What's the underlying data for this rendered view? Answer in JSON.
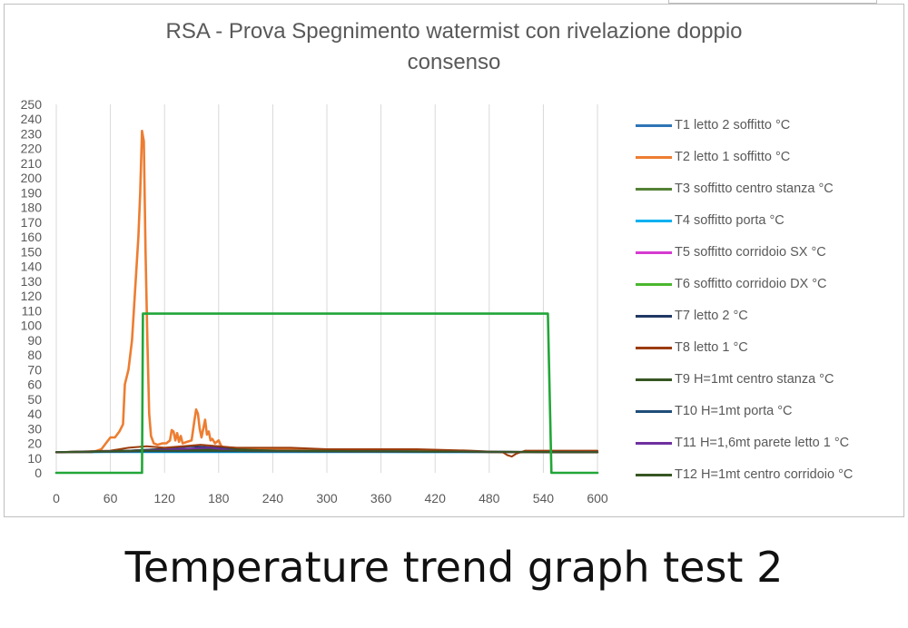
{
  "caption": "Temperature trend graph test 2",
  "chart_data": {
    "type": "line",
    "title": "RSA - Prova Spegnimento watermist con rivelazione doppio consenso",
    "title_lines": [
      "RSA - Prova Spegnimento watermist con rivelazione doppio",
      "consenso"
    ],
    "xlabel": "",
    "ylabel": "",
    "xlim": [
      0,
      600
    ],
    "ylim": [
      0,
      250
    ],
    "x_ticks": [
      "0",
      "60",
      "120",
      "180",
      "240",
      "300",
      "360",
      "420",
      "480",
      "540",
      "600"
    ],
    "y_ticks": [
      "0",
      "10",
      "20",
      "30",
      "40",
      "50",
      "60",
      "70",
      "80",
      "90",
      "100",
      "110",
      "120",
      "130",
      "140",
      "150",
      "160",
      "170",
      "180",
      "190",
      "200",
      "210",
      "220",
      "230",
      "240",
      "250"
    ],
    "grid": "vertical",
    "legend_position": "right",
    "series": [
      {
        "name": "T1 letto 2 soffitto °C",
        "color": "#2e75b6",
        "x": [
          0,
          40,
          80,
          100,
          130,
          180,
          250,
          400,
          600
        ],
        "y": [
          14,
          14,
          14.5,
          15,
          15,
          15,
          14.5,
          14,
          14
        ]
      },
      {
        "name": "T2 letto 1 soffitto °C",
        "color": "#ed7d31",
        "x": [
          0,
          40,
          50,
          55,
          60,
          65,
          70,
          74,
          76,
          78,
          80,
          84,
          88,
          91,
          93,
          95,
          97,
          99,
          101,
          103,
          105,
          108,
          112,
          118,
          122,
          126,
          128,
          130,
          132,
          134,
          136,
          138,
          140,
          145,
          150,
          153,
          155,
          157,
          159,
          161,
          163,
          165,
          167,
          169,
          171,
          173,
          176,
          180,
          183,
          186,
          190,
          200,
          220,
          260,
          300,
          400,
          480,
          540,
          600
        ],
        "y": [
          14,
          14,
          16,
          20,
          24,
          24,
          28,
          33,
          60,
          65,
          70,
          90,
          130,
          160,
          190,
          232,
          225,
          150,
          90,
          40,
          25,
          20,
          19,
          20,
          20,
          22,
          29,
          28,
          22,
          27,
          21,
          25,
          20,
          21,
          22,
          35,
          43,
          40,
          30,
          24,
          30,
          36,
          26,
          28,
          22,
          23,
          20,
          22,
          18,
          17,
          17,
          16,
          16,
          16,
          15,
          15,
          14,
          14,
          14
        ]
      },
      {
        "name": "T3 soffitto centro stanza °C",
        "color": "#548235",
        "x": [
          0,
          80,
          120,
          180,
          250,
          600
        ],
        "y": [
          14,
          15,
          16,
          16,
          15,
          14
        ]
      },
      {
        "name": "T4 soffitto porta °C",
        "color": "#00b0f0",
        "x": [
          0,
          100,
          200,
          600
        ],
        "y": [
          14,
          14,
          14,
          14
        ]
      },
      {
        "name": "T5 soffitto corridoio SX °C",
        "color": "#d63ad0",
        "x": [
          0,
          100,
          200,
          600
        ],
        "y": [
          14,
          14.5,
          14.5,
          14
        ]
      },
      {
        "name": "T6 soffitto corridoio DX °C",
        "color": "#4cb72f",
        "x": [
          0,
          100,
          200,
          600
        ],
        "y": [
          14,
          14.5,
          14.5,
          14
        ]
      },
      {
        "name": "T7 letto 2 °C",
        "color": "#203864",
        "x": [
          0,
          80,
          110,
          150,
          180,
          220,
          600
        ],
        "y": [
          14,
          15,
          16,
          18,
          17,
          15,
          14
        ]
      },
      {
        "name": "T8 letto 1 °C",
        "color": "#9c3c0b",
        "x": [
          0,
          60,
          80,
          100,
          120,
          140,
          160,
          180,
          200,
          230,
          260,
          300,
          340,
          400,
          460,
          495,
          500,
          505,
          510,
          520,
          540,
          600
        ],
        "y": [
          14,
          15,
          17,
          18,
          17,
          18,
          19,
          18,
          17,
          17,
          17,
          16,
          16,
          16,
          15,
          14,
          12,
          11,
          13,
          15,
          15,
          15
        ]
      },
      {
        "name": "T9 H=1mt centro stanza °C",
        "color": "#375623",
        "x": [
          0,
          80,
          120,
          180,
          250,
          600
        ],
        "y": [
          14,
          15,
          16,
          16,
          15,
          14
        ]
      },
      {
        "name": "T10 H=1mt porta °C",
        "color": "#1f4e79",
        "x": [
          0,
          100,
          200,
          600
        ],
        "y": [
          14,
          14.5,
          14.5,
          14
        ]
      },
      {
        "name": "T11 H=1,6mt parete letto 1 °C",
        "color": "#7030a0",
        "x": [
          0,
          90,
          130,
          170,
          200,
          600
        ],
        "y": [
          14,
          15,
          16,
          17,
          15,
          14
        ]
      },
      {
        "name": "T12 H=1mt centro corridoio °C",
        "color": "#375623",
        "x": [
          0,
          100,
          200,
          600
        ],
        "y": [
          14,
          15,
          15,
          14
        ]
      },
      {
        "name": "",
        "color": "#22a638",
        "x": [
          0,
          95,
          96,
          545,
          549,
          600
        ],
        "y": [
          0,
          0,
          108,
          108,
          0,
          0
        ]
      }
    ]
  }
}
